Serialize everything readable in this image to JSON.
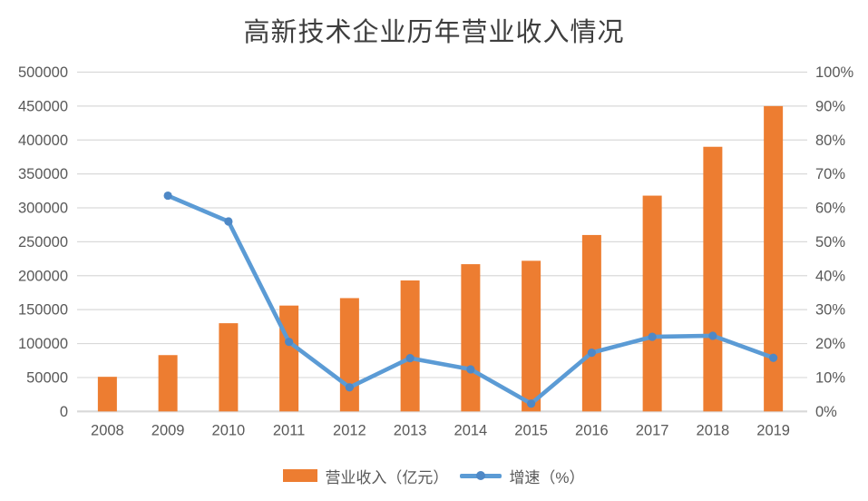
{
  "chart_data": {
    "type": "combo",
    "title": "高新技术企业历年营业收入情况",
    "categories": [
      "2008",
      "2009",
      "2010",
      "2011",
      "2012",
      "2013",
      "2014",
      "2015",
      "2016",
      "2017",
      "2018",
      "2019"
    ],
    "series": [
      {
        "name": "营业收入（亿元）",
        "type": "bar",
        "axis": "left",
        "values": [
          51000,
          83000,
          130000,
          156000,
          167000,
          193000,
          217000,
          222000,
          260000,
          318000,
          390000,
          450000
        ]
      },
      {
        "name": "增速（%）",
        "type": "line",
        "axis": "right",
        "values": [
          null,
          63.6,
          56.0,
          20.5,
          7.1,
          15.7,
          12.4,
          2.3,
          17.3,
          22.0,
          22.3,
          15.8
        ]
      }
    ],
    "y_left": {
      "min": 0,
      "max": 500000,
      "step": 50000,
      "ticks": [
        "0",
        "50000",
        "100000",
        "150000",
        "200000",
        "250000",
        "300000",
        "350000",
        "400000",
        "450000",
        "500000"
      ]
    },
    "y_right": {
      "min": 0,
      "max": 100,
      "step": 10,
      "ticks": [
        "0%",
        "10%",
        "20%",
        "30%",
        "40%",
        "50%",
        "60%",
        "70%",
        "80%",
        "90%",
        "100%"
      ]
    },
    "legend": [
      "营业收入（亿元）",
      "增速（%）"
    ],
    "legend_position": "bottom",
    "grid": true,
    "colors": {
      "bar": "#ED7D31",
      "line": "#5B9BD5",
      "marker": "#4E88C6",
      "gridline": "#D9D9D9",
      "axis_line": "#D9D9D9",
      "tick_text": "#595959",
      "title_text": "#3E3E3E"
    }
  }
}
